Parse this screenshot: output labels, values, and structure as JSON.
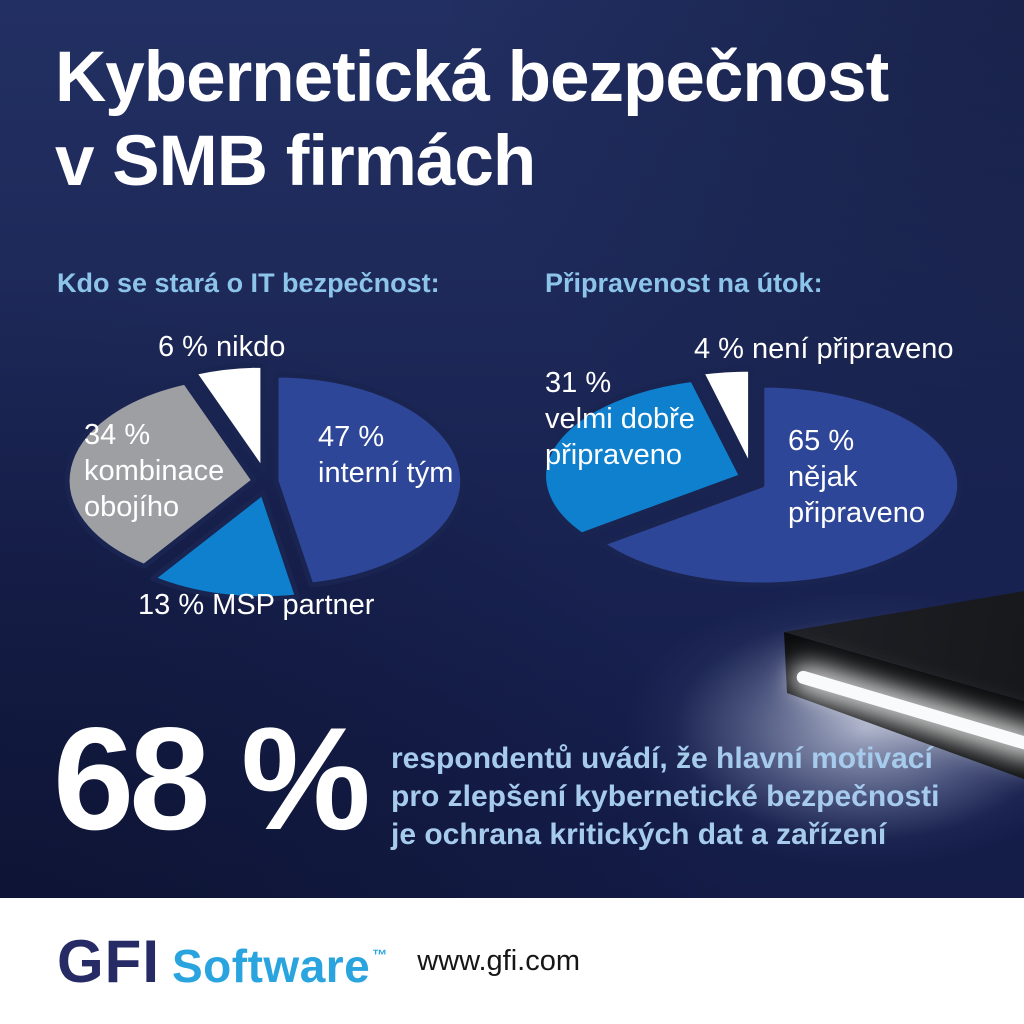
{
  "title": "Kybernetická bezpečnost\nv SMB firmách",
  "charts": {
    "left": {
      "heading": "Kdo se stará o IT bezpečnost:",
      "labels": {
        "top": "6 % nikdo",
        "right": "47 %\ninterní tým",
        "side": "34 %\nkombinace\nobojího",
        "bottom": "13 % MSP partner"
      }
    },
    "right": {
      "heading": "Připravenost na útok:",
      "labels": {
        "top": "4 % není připraveno",
        "side": "31 %\nvelmi dobře\npřipraveno",
        "right": "65 %\nnějak\npřipraveno"
      }
    }
  },
  "stat": {
    "value": "68 %",
    "description": "respondentů uvádí, že hlavní motivací\npro zlepšení kybernetické bezpečnosti\nje ochrana kritických dat a zařízení"
  },
  "footer": {
    "brand_primary": "GFI",
    "brand_secondary": "Software",
    "trademark": "™",
    "website": "www.gfi.com"
  },
  "colors": {
    "background_top": "#222f62",
    "background_bottom": "#121a43",
    "heading_blue": "#8cc4ea",
    "body_text_blue": "#a6cbec",
    "stat_white": "#ffffff",
    "pie_gap": "#1a2450",
    "slice_dark_blue": "#2e4697",
    "slice_bright_blue": "#0e80ce",
    "slice_gray": "#9d9fa2",
    "slice_white": "#ffffff",
    "logo_navy": "#262b66",
    "logo_blue": "#2aa4de",
    "footer_background": "#ffffff"
  },
  "chart_data": [
    {
      "type": "pie",
      "title": "Kdo se stará o IT bezpečnost:",
      "unit": "%",
      "slices": [
        {
          "label": "interní tým",
          "value": 47,
          "color": "#2e4697"
        },
        {
          "label": "MSP partner",
          "value": 13,
          "color": "#0e80ce"
        },
        {
          "label": "kombinace obojího",
          "value": 34,
          "color": "#9d9fa2"
        },
        {
          "label": "nikdo",
          "value": 6,
          "color": "#ffffff"
        }
      ],
      "legend_position": "labels-on-chart",
      "start_angle_deg": 0,
      "exploded": true
    },
    {
      "type": "pie",
      "title": "Připravenost na útok:",
      "unit": "%",
      "slices": [
        {
          "label": "nějak připraveno",
          "value": 65,
          "color": "#2e4697"
        },
        {
          "label": "velmi dobře připraveno",
          "value": 31,
          "color": "#0e80ce"
        },
        {
          "label": "není připraveno",
          "value": 4,
          "color": "#ffffff"
        }
      ],
      "legend_position": "labels-on-chart",
      "start_angle_deg": 0,
      "exploded": true
    }
  ]
}
